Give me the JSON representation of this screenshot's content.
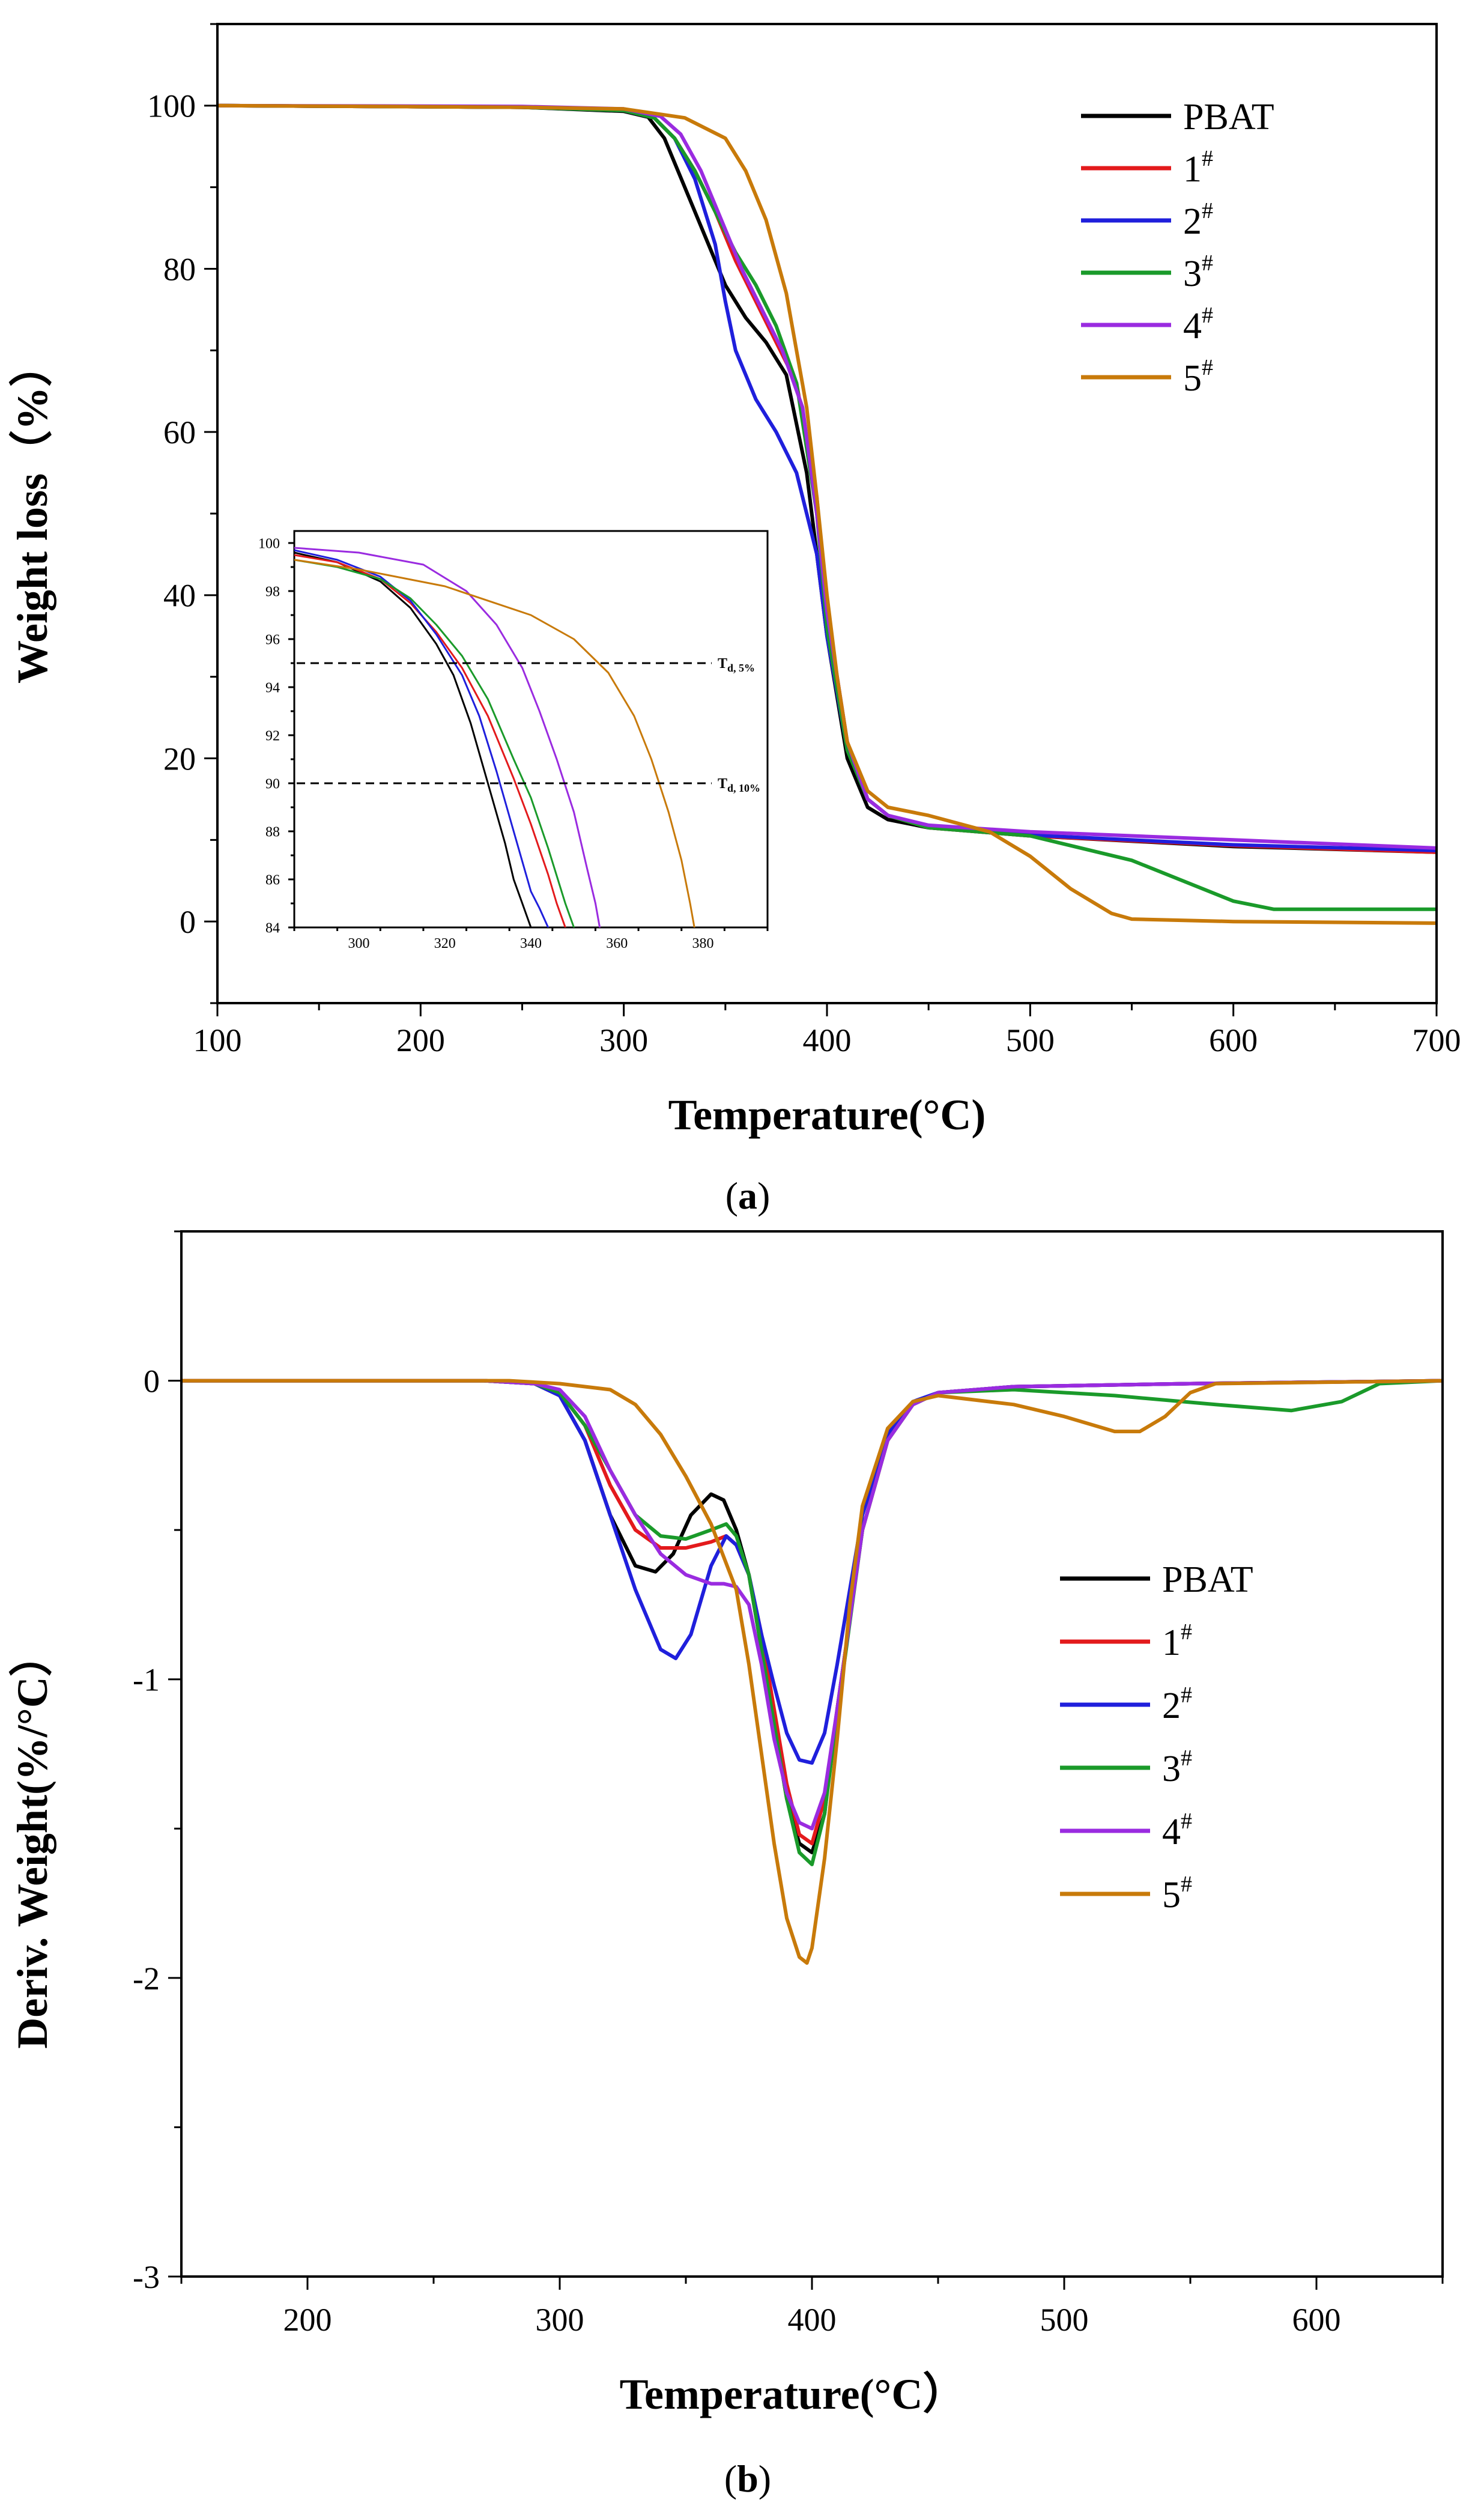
{
  "colors": {
    "PBAT": "#000000",
    "s1": "#e31a1c",
    "s2": "#1f1fdc",
    "s3": "#1a9a2a",
    "s4": "#9a2be0",
    "s5": "#c87a0a"
  },
  "chart_data": [
    {
      "id": "a",
      "type": "line",
      "panel_label": "(a)",
      "panel_letter": "a",
      "title": "",
      "xlabel": "Temperature(°C)",
      "ylabel": "Weight loss（%）",
      "xlim": [
        100,
        700
      ],
      "ylim": [
        -10,
        110
      ],
      "xticks": [
        100,
        200,
        300,
        400,
        500,
        600,
        700
      ],
      "yticks": [
        0,
        20,
        40,
        60,
        80,
        100
      ],
      "legend_position": "top-right",
      "series": [
        {
          "name": "PBAT",
          "label_main": "PBAT",
          "label_sup": "",
          "color_key": "PBAT",
          "x": [
            100,
            250,
            300,
            312,
            320,
            330,
            340,
            350,
            360,
            370,
            380,
            390,
            400,
            410,
            420,
            430,
            450,
            500,
            600,
            700
          ],
          "y": [
            100,
            99.8,
            99.3,
            98.6,
            96,
            90,
            84,
            78,
            74,
            71,
            67,
            55,
            35,
            20,
            14,
            12.5,
            11.5,
            10.5,
            9.2,
            8.5
          ]
        },
        {
          "name": "1#",
          "label_main": "1",
          "label_sup": "#",
          "color_key": "s1",
          "x": [
            100,
            250,
            300,
            315,
            325,
            335,
            345,
            355,
            365,
            375,
            385,
            395,
            400,
            410,
            420,
            430,
            450,
            500,
            600,
            700
          ],
          "y": [
            100,
            99.8,
            99.4,
            98.5,
            96,
            92,
            87,
            81,
            76,
            71,
            66,
            52,
            38,
            22,
            15,
            13,
            11.5,
            10.5,
            9.3,
            8.5
          ]
        },
        {
          "name": "2#",
          "label_main": "2",
          "label_sup": "#",
          "color_key": "s2",
          "x": [
            100,
            250,
            300,
            315,
            325,
            335,
            345,
            350,
            355,
            365,
            375,
            385,
            395,
            400,
            410,
            420,
            430,
            450,
            500,
            600,
            700
          ],
          "y": [
            100,
            99.8,
            99.4,
            98.5,
            96,
            91,
            83,
            76,
            70,
            64,
            60,
            55,
            45,
            35,
            21,
            15,
            13,
            11.6,
            10.6,
            9.4,
            8.7
          ]
        },
        {
          "name": "3#",
          "label_main": "3",
          "label_sup": "#",
          "color_key": "s3",
          "x": [
            100,
            250,
            300,
            315,
            325,
            335,
            345,
            355,
            365,
            375,
            385,
            395,
            400,
            410,
            420,
            430,
            450,
            500,
            550,
            600,
            620,
            700
          ],
          "y": [
            100,
            99.8,
            99.4,
            98.5,
            96,
            92,
            87,
            82,
            78,
            73,
            66,
            50,
            36,
            21,
            15,
            13,
            11.5,
            10.5,
            7.5,
            2.5,
            1.5,
            1.5
          ]
        },
        {
          "name": "4#",
          "label_main": "4",
          "label_sup": "#",
          "color_key": "s4",
          "x": [
            100,
            250,
            300,
            318,
            328,
            338,
            348,
            358,
            368,
            378,
            388,
            395,
            400,
            410,
            420,
            430,
            450,
            500,
            600,
            700
          ],
          "y": [
            100,
            99.9,
            99.6,
            98.7,
            96.5,
            92,
            86,
            80,
            75,
            70,
            63,
            50,
            38,
            22,
            15,
            13,
            11.8,
            11,
            10,
            9
          ]
        },
        {
          "name": "5#",
          "label_main": "5",
          "label_sup": "#",
          "color_key": "s5",
          "x": [
            100,
            250,
            300,
            330,
            350,
            360,
            370,
            380,
            390,
            395,
            400,
            405,
            410,
            420,
            430,
            450,
            480,
            500,
            520,
            540,
            550,
            600,
            700
          ],
          "y": [
            100,
            99.8,
            99.6,
            98.5,
            96,
            92,
            86,
            77,
            63,
            52,
            40,
            30,
            22,
            16,
            14,
            13,
            11,
            8,
            4,
            1,
            0.3,
            0,
            -0.2
          ]
        }
      ],
      "inset": {
        "xlim": [
          285,
          395
        ],
        "ylim": [
          84,
          100.5
        ],
        "xticks": [
          300,
          320,
          340,
          360,
          380
        ],
        "yticks": [
          84,
          86,
          88,
          90,
          92,
          94,
          96,
          98,
          100
        ],
        "reference_lines": [
          {
            "y": 95,
            "label_main": "T",
            "label_sub": "d, 5%"
          },
          {
            "y": 90,
            "label_main": "T",
            "label_sub": "d, 10%"
          }
        ],
        "series": [
          {
            "name": "PBAT",
            "color_key": "PBAT",
            "x": [
              285,
              295,
              305,
              312,
              318,
              322,
              326,
              330,
              334,
              336,
              338,
              340
            ],
            "y": [
              99.6,
              99.2,
              98.4,
              97.3,
              95.8,
              94.5,
              92.5,
              90,
              87.5,
              86,
              85,
              84
            ]
          },
          {
            "name": "1#",
            "color_key": "s1",
            "x": [
              285,
              295,
              305,
              312,
              318,
              324,
              330,
              336,
              340,
              344,
              346,
              348
            ],
            "y": [
              99.5,
              99.2,
              98.5,
              97.5,
              96.3,
              94.8,
              92.8,
              90.2,
              88.3,
              86.2,
              85,
              84
            ]
          },
          {
            "name": "2#",
            "color_key": "s2",
            "x": [
              285,
              295,
              305,
              312,
              318,
              324,
              328,
              332,
              336,
              340,
              342,
              344
            ],
            "y": [
              99.7,
              99.3,
              98.6,
              97.6,
              96.2,
              94.5,
              92.8,
              90.5,
              88,
              85.5,
              84.8,
              84
            ]
          },
          {
            "name": "3#",
            "color_key": "s3",
            "x": [
              285,
              295,
              305,
              312,
              318,
              324,
              330,
              336,
              340,
              344,
              348,
              350
            ],
            "y": [
              99.3,
              99,
              98.5,
              97.7,
              96.6,
              95.3,
              93.5,
              91,
              89.4,
              87.3,
              85,
              84
            ]
          },
          {
            "name": "4#",
            "color_key": "s4",
            "x": [
              285,
              300,
              315,
              325,
              332,
              338,
              342,
              346,
              350,
              353,
              355,
              356
            ],
            "y": [
              99.8,
              99.6,
              99.1,
              98,
              96.6,
              94.8,
              93,
              91,
              88.8,
              86.5,
              85,
              84
            ]
          },
          {
            "name": "5#",
            "color_key": "s5",
            "x": [
              285,
              300,
              320,
              340,
              350,
              358,
              364,
              368,
              372,
              375,
              377,
              378
            ],
            "y": [
              99.3,
              98.9,
              98.2,
              97,
              96,
              94.6,
              92.8,
              91,
              88.8,
              86.8,
              85,
              84
            ]
          }
        ]
      }
    },
    {
      "id": "b",
      "type": "line",
      "panel_label": "(b)",
      "panel_letter": "b",
      "title": "",
      "xlabel": "Temperature(°C）",
      "ylabel": "Deriv. Weight(%/°C）",
      "xlim": [
        150,
        650
      ],
      "ylim": [
        -3,
        0.5
      ],
      "xticks": [
        200,
        300,
        400,
        500,
        600
      ],
      "yticks": [
        -3,
        -2,
        -1,
        0
      ],
      "legend_position": "middle-right",
      "series": [
        {
          "name": "PBAT",
          "label_main": "PBAT",
          "label_sup": "",
          "color_key": "PBAT",
          "x": [
            150,
            270,
            290,
            300,
            310,
            320,
            330,
            338,
            345,
            352,
            360,
            365,
            370,
            375,
            380,
            385,
            390,
            395,
            400,
            405,
            410,
            420,
            430,
            440,
            450,
            480,
            550,
            650
          ],
          "y": [
            0,
            0,
            -0.01,
            -0.05,
            -0.2,
            -0.45,
            -0.62,
            -0.64,
            -0.58,
            -0.45,
            -0.38,
            -0.4,
            -0.5,
            -0.65,
            -0.9,
            -1.15,
            -1.4,
            -1.55,
            -1.58,
            -1.45,
            -1.1,
            -0.5,
            -0.2,
            -0.08,
            -0.04,
            -0.02,
            -0.01,
            0
          ]
        },
        {
          "name": "1#",
          "label_main": "1",
          "label_sup": "#",
          "color_key": "s1",
          "x": [
            150,
            270,
            290,
            300,
            310,
            320,
            330,
            340,
            350,
            360,
            366,
            370,
            375,
            380,
            385,
            390,
            395,
            400,
            405,
            410,
            420,
            430,
            440,
            450,
            480,
            550,
            650
          ],
          "y": [
            0,
            0,
            -0.01,
            -0.04,
            -0.15,
            -0.35,
            -0.5,
            -0.56,
            -0.56,
            -0.54,
            -0.52,
            -0.55,
            -0.65,
            -0.85,
            -1.1,
            -1.35,
            -1.52,
            -1.55,
            -1.4,
            -1.1,
            -0.5,
            -0.2,
            -0.08,
            -0.04,
            -0.02,
            -0.01,
            0
          ]
        },
        {
          "name": "2#",
          "label_main": "2",
          "label_sup": "#",
          "color_key": "s2",
          "x": [
            150,
            270,
            290,
            300,
            310,
            320,
            330,
            340,
            346,
            352,
            360,
            366,
            370,
            375,
            380,
            385,
            390,
            395,
            400,
            405,
            410,
            420,
            430,
            440,
            450,
            480,
            550,
            650
          ],
          "y": [
            0,
            0,
            -0.01,
            -0.05,
            -0.2,
            -0.45,
            -0.7,
            -0.9,
            -0.93,
            -0.85,
            -0.62,
            -0.52,
            -0.55,
            -0.65,
            -0.85,
            -1.02,
            -1.18,
            -1.27,
            -1.28,
            -1.18,
            -0.95,
            -0.45,
            -0.18,
            -0.07,
            -0.04,
            -0.02,
            -0.01,
            0
          ]
        },
        {
          "name": "3#",
          "label_main": "3",
          "label_sup": "#",
          "color_key": "s3",
          "x": [
            150,
            270,
            290,
            300,
            310,
            320,
            330,
            340,
            350,
            360,
            366,
            370,
            375,
            380,
            385,
            390,
            395,
            400,
            405,
            410,
            420,
            430,
            440,
            450,
            480,
            520,
            560,
            590,
            610,
            625,
            650
          ],
          "y": [
            0,
            0,
            -0.01,
            -0.04,
            -0.15,
            -0.3,
            -0.45,
            -0.52,
            -0.53,
            -0.5,
            -0.48,
            -0.52,
            -0.65,
            -0.9,
            -1.15,
            -1.4,
            -1.58,
            -1.62,
            -1.45,
            -1.12,
            -0.5,
            -0.2,
            -0.08,
            -0.04,
            -0.03,
            -0.05,
            -0.08,
            -0.1,
            -0.07,
            -0.01,
            0
          ]
        },
        {
          "name": "4#",
          "label_main": "4",
          "label_sup": "#",
          "color_key": "s4",
          "x": [
            150,
            270,
            290,
            300,
            310,
            320,
            330,
            340,
            350,
            360,
            365,
            370,
            375,
            380,
            385,
            390,
            395,
            400,
            405,
            410,
            420,
            430,
            440,
            450,
            480,
            550,
            650
          ],
          "y": [
            0,
            0,
            -0.01,
            -0.03,
            -0.12,
            -0.3,
            -0.45,
            -0.58,
            -0.65,
            -0.68,
            -0.68,
            -0.69,
            -0.75,
            -0.95,
            -1.2,
            -1.38,
            -1.48,
            -1.5,
            -1.38,
            -1.1,
            -0.5,
            -0.2,
            -0.08,
            -0.04,
            -0.02,
            -0.01,
            0
          ]
        },
        {
          "name": "5#",
          "label_main": "5",
          "label_sup": "#",
          "color_key": "s5",
          "x": [
            150,
            280,
            300,
            320,
            330,
            340,
            350,
            360,
            370,
            375,
            380,
            385,
            390,
            395,
            398,
            400,
            405,
            410,
            415,
            420,
            430,
            440,
            450,
            480,
            500,
            520,
            530,
            540,
            550,
            560,
            650
          ],
          "y": [
            0,
            0,
            -0.01,
            -0.03,
            -0.08,
            -0.18,
            -0.32,
            -0.48,
            -0.7,
            -0.95,
            -1.25,
            -1.55,
            -1.8,
            -1.93,
            -1.95,
            -1.9,
            -1.6,
            -1.2,
            -0.75,
            -0.42,
            -0.16,
            -0.07,
            -0.05,
            -0.08,
            -0.12,
            -0.17,
            -0.17,
            -0.12,
            -0.04,
            -0.01,
            0
          ]
        }
      ]
    }
  ]
}
